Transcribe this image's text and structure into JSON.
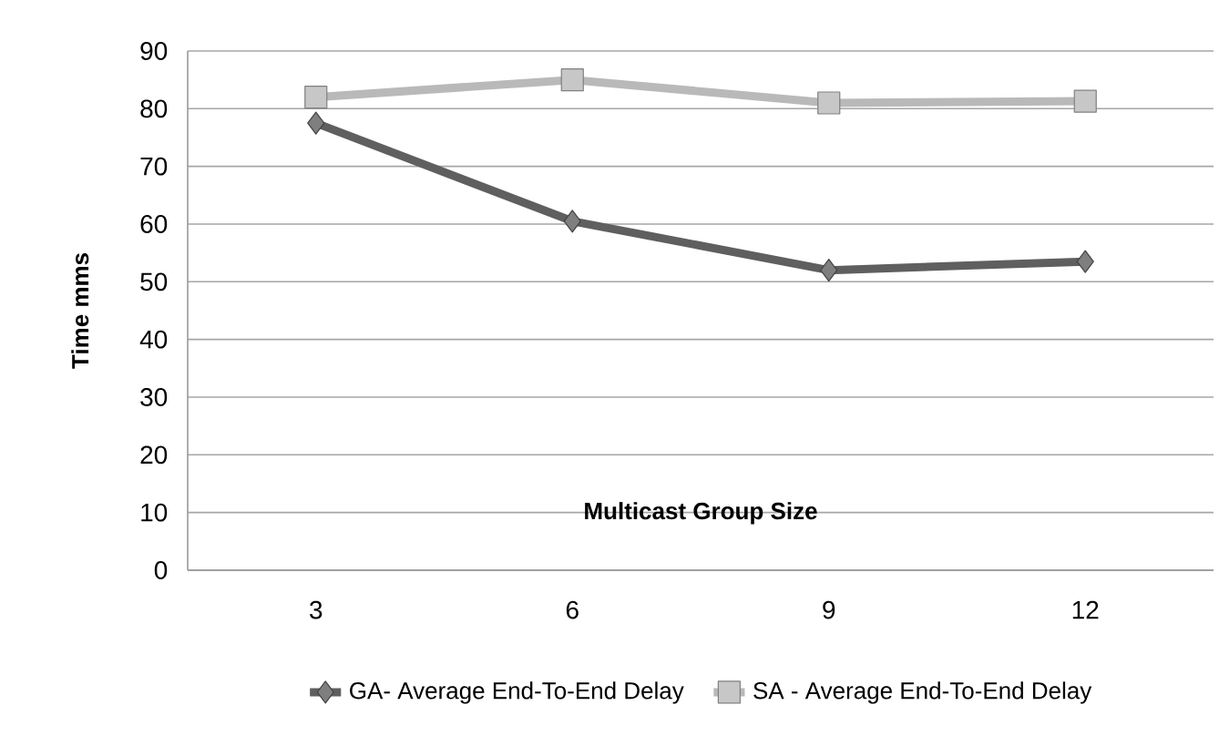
{
  "chart_data": {
    "type": "line",
    "xlabel": "Multicast Group Size",
    "ylabel": "Time mms",
    "categories": [
      "3",
      "6",
      "9",
      "12"
    ],
    "ylim": [
      0,
      90
    ],
    "yticks": [
      0,
      10,
      20,
      30,
      40,
      50,
      60,
      70,
      80,
      90
    ],
    "grid": "y",
    "legend": "bottom",
    "series": [
      {
        "name": "GA- Average End-To-End Delay",
        "color": "#5f5f5f",
        "marker": "diamond",
        "values": [
          77.5,
          60.5,
          52,
          53.5
        ]
      },
      {
        "name": "SA - Average End-To-End Delay",
        "color": "#b9b9b9",
        "marker": "square",
        "values": [
          82,
          85,
          81,
          81.3
        ]
      }
    ]
  }
}
